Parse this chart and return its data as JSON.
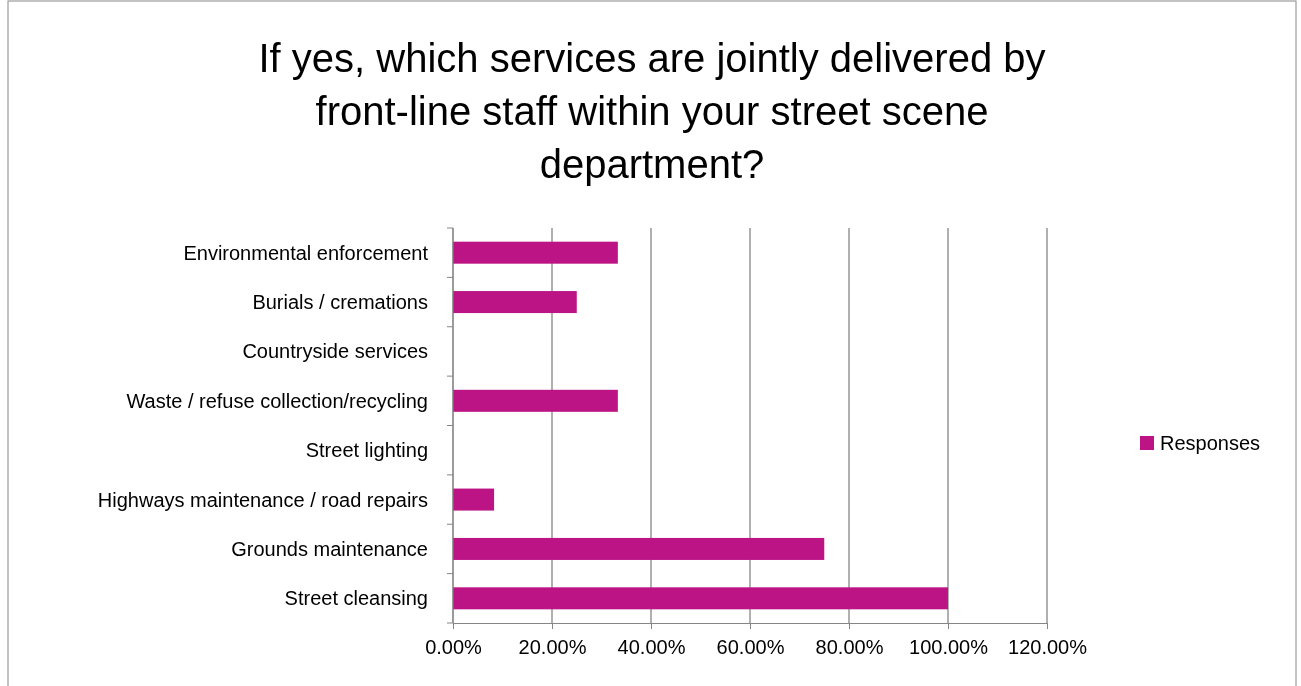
{
  "chart_data": {
    "type": "bar",
    "orientation": "horizontal",
    "title": "If yes, which services are jointly delivered by front-line staff within your street scene department?",
    "categories": [
      "Environmental enforcement",
      "Burials / cremations",
      "Countryside services",
      "Waste / refuse collection/recycling",
      "Street lighting",
      "Highways maintenance / road repairs",
      "Grounds maintenance",
      "Street cleansing"
    ],
    "series": [
      {
        "name": "Responses",
        "color": "#bc1385",
        "values": [
          33.3,
          25,
          0,
          33.3,
          0,
          8.3,
          75,
          100
        ]
      }
    ],
    "xlim": [
      0,
      120
    ],
    "xticks": [
      {
        "value": 0,
        "label": "0.00%"
      },
      {
        "value": 20,
        "label": "20.00%"
      },
      {
        "value": 40,
        "label": "40.00%"
      },
      {
        "value": 60,
        "label": "60.00%"
      },
      {
        "value": 80,
        "label": "80.00%"
      },
      {
        "value": 100,
        "label": "100.00%"
      },
      {
        "value": 120,
        "label": "120.00%"
      }
    ],
    "grid": "x",
    "legend": "right"
  }
}
